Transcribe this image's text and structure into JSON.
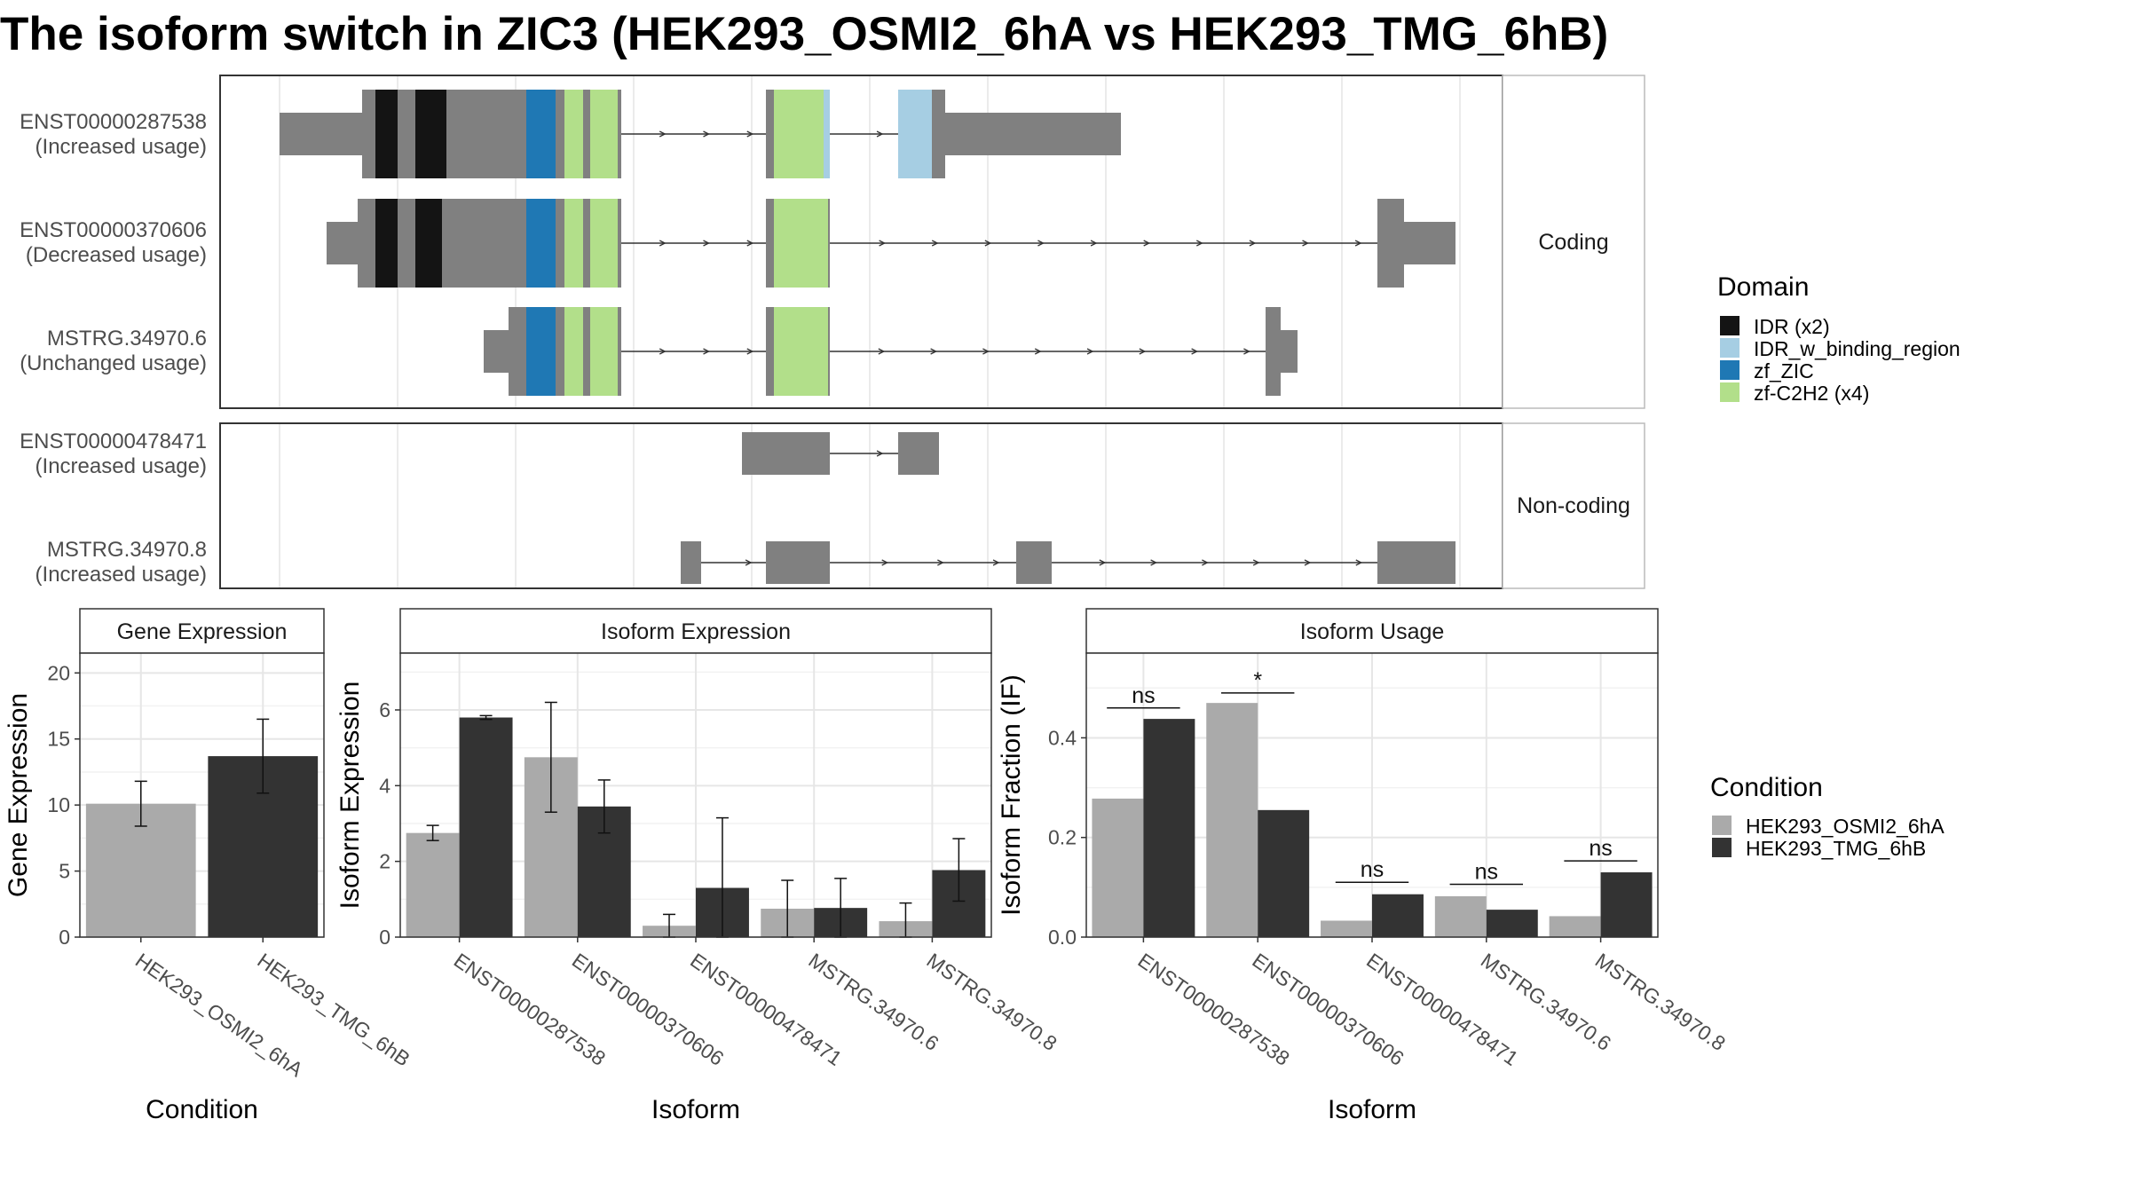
{
  "title": "The isoform switch in ZIC3 (HEK293_OSMI2_6hA vs HEK293_TMG_6hB)",
  "colors": {
    "exon": "#808080",
    "IDR (x2)": "#141414",
    "IDR_w_binding_region": "#a6cee3",
    "zf_ZIC": "#1f78b4",
    "zf-C2H2 (x4)": "#b2df8a",
    "HEK293_OSMI2_6hA": "#aaaaaa",
    "HEK293_TMG_6hB": "#333333"
  },
  "structure": {
    "panels": [
      {
        "label": "Coding",
        "isoforms": [
          {
            "id": "ENST00000287538",
            "usage": "(Increased usage)"
          },
          {
            "id": "ENST00000370606",
            "usage": "(Decreased usage)"
          },
          {
            "id": "MSTRG.34970.6",
            "usage": "(Unchanged usage)"
          }
        ]
      },
      {
        "label": "Non-coding",
        "isoforms": [
          {
            "id": "ENST00000478471",
            "usage": "(Increased usage)"
          },
          {
            "id": "MSTRG.34970.8",
            "usage": "(Increased usage)"
          }
        ]
      }
    ],
    "legend": {
      "title": "Domain",
      "items": [
        "IDR (x2)",
        "IDR_w_binding_region",
        "zf_ZIC",
        "zf-C2H2 (x4)"
      ]
    }
  },
  "chart_data": [
    {
      "type": "bar",
      "title": "Gene Expression",
      "xlabel": "Condition",
      "ylabel": "Gene Expression",
      "categories": [
        "HEK293_OSMI2_6hA",
        "HEK293_TMG_6hB"
      ],
      "values": [
        10.1,
        13.7
      ],
      "error_low": [
        8.4,
        10.9
      ],
      "error_high": [
        11.8,
        16.5
      ],
      "ylim": [
        0,
        21.5
      ],
      "yticks": [
        0,
        5,
        10,
        15,
        20
      ],
      "grid": true
    },
    {
      "type": "bar",
      "title": "Isoform Expression",
      "xlabel": "Isoform",
      "ylabel": "Isoform Expression",
      "categories": [
        "ENST00000287538",
        "ENST00000370606",
        "ENST00000478471",
        "MSTRG.34970.6",
        "MSTRG.34970.8"
      ],
      "series": [
        {
          "name": "HEK293_OSMI2_6hA",
          "values": [
            2.75,
            4.75,
            0.3,
            0.75,
            0.42
          ],
          "error_low": [
            2.55,
            3.3,
            0.0,
            0.0,
            0.0
          ],
          "error_high": [
            2.95,
            6.2,
            0.6,
            1.5,
            0.9
          ]
        },
        {
          "name": "HEK293_TMG_6hB",
          "values": [
            5.8,
            3.45,
            1.3,
            0.77,
            1.77
          ],
          "error_low": [
            5.75,
            2.75,
            0.0,
            0.0,
            0.95
          ],
          "error_high": [
            5.85,
            4.15,
            3.15,
            1.55,
            2.6
          ]
        }
      ],
      "ylim": [
        0,
        7.5
      ],
      "yticks": [
        0,
        2,
        4,
        6
      ],
      "grid": true
    },
    {
      "type": "bar",
      "title": "Isoform Usage",
      "xlabel": "Isoform",
      "ylabel": "Isoform Fraction (IF)",
      "categories": [
        "ENST00000287538",
        "ENST00000370606",
        "ENST00000478471",
        "MSTRG.34970.6",
        "MSTRG.34970.8"
      ],
      "series": [
        {
          "name": "HEK293_OSMI2_6hA",
          "values": [
            0.278,
            0.47,
            0.033,
            0.082,
            0.042
          ]
        },
        {
          "name": "HEK293_TMG_6hB",
          "values": [
            0.438,
            0.255,
            0.086,
            0.055,
            0.13
          ]
        }
      ],
      "significance": [
        {
          "category": "ENST00000287538",
          "label": "ns",
          "y": 0.46
        },
        {
          "category": "ENST00000370606",
          "label": "*",
          "y": 0.49
        },
        {
          "category": "ENST00000478471",
          "label": "ns",
          "y": 0.11
        },
        {
          "category": "MSTRG.34970.6",
          "label": "ns",
          "y": 0.106
        },
        {
          "category": "MSTRG.34970.8",
          "label": "ns",
          "y": 0.153
        }
      ],
      "ylim": [
        0,
        0.57
      ],
      "yticks": [
        0.0,
        0.2,
        0.4
      ],
      "ytick_labels": [
        "0.0",
        "0.2",
        "0.4"
      ],
      "grid": true
    }
  ],
  "condition_legend": {
    "title": "Condition",
    "items": [
      "HEK293_OSMI2_6hA",
      "HEK293_TMG_6hB"
    ]
  }
}
